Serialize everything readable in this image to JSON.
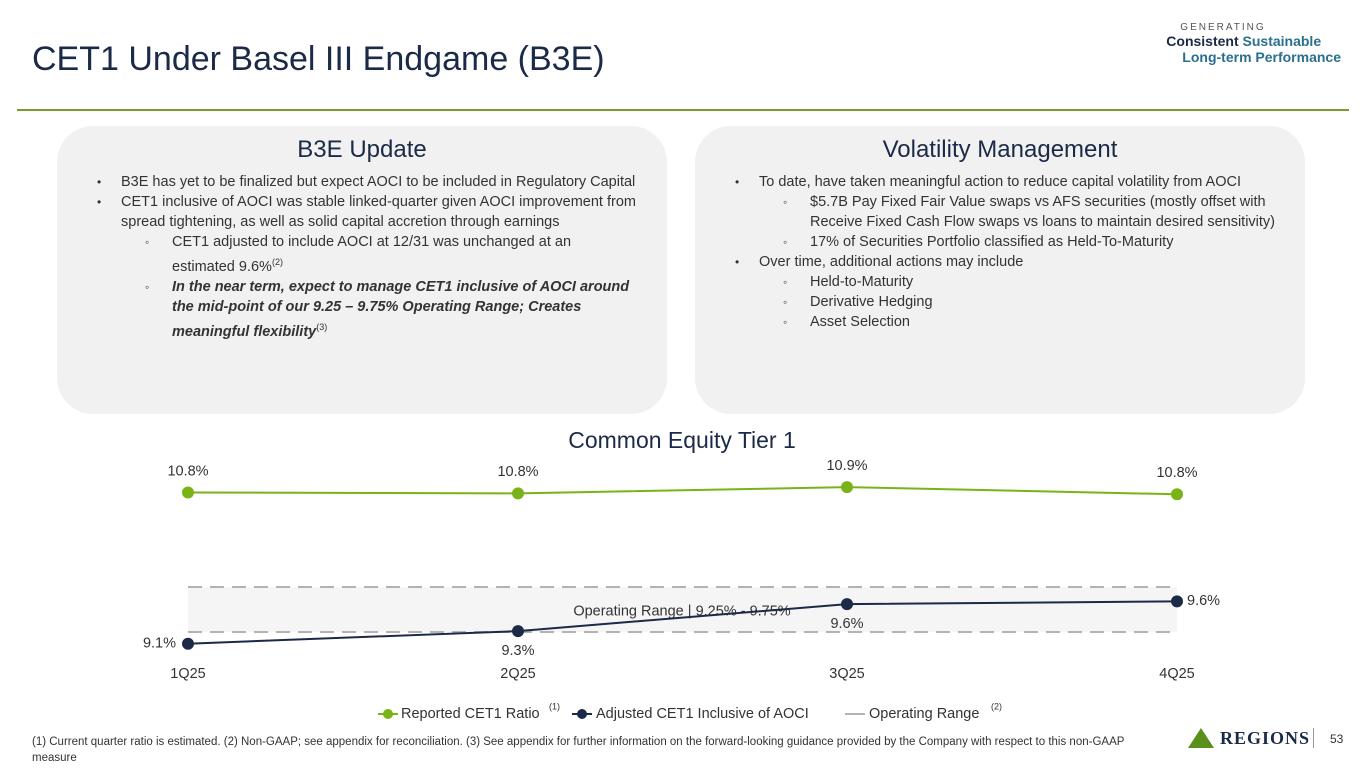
{
  "header": {
    "title": "CET1 Under Basel III Endgame (B3E)",
    "logo": {
      "line1": "GENERATING",
      "line2a": "Consistent",
      "line2b": "Sustainable",
      "line3": "Long-term Performance"
    }
  },
  "panels": [
    {
      "title": "B3E Update",
      "items": [
        {
          "text": "B3E has yet to be finalized but expect AOCI to be included in Regulatory Capital"
        },
        {
          "text": "CET1 inclusive of AOCI was stable linked-quarter given AOCI improvement from spread tightening, as well as solid capital accretion through earnings"
        },
        {
          "text": "CET1 adjusted to include AOCI at 12/31 was unchanged at an estimated 9.6%",
          "sup": "(2)"
        },
        {
          "text": "In the near term, expect to manage CET1 inclusive of AOCI around the mid-point of our 9.25 – 9.75% Operating Range; Creates meaningful flexibility",
          "sup": "(3)"
        }
      ]
    },
    {
      "title": "Volatility Management",
      "items": [
        {
          "text": "To date, have taken meaningful action to reduce capital volatility from AOCI"
        },
        {
          "text": "$5.7B Pay Fixed Fair Value swaps vs AFS securities (mostly offset with Receive Fixed Cash Flow swaps vs loans to maintain desired sensitivity)"
        },
        {
          "text": "17% of Securities Portfolio classified as Held-To-Maturity"
        },
        {
          "text": "Over time, additional actions may include"
        },
        {
          "text": "Held-to-Maturity"
        },
        {
          "text": "Derivative Hedging"
        },
        {
          "text": "Asset Selection"
        }
      ]
    }
  ],
  "chart_data": {
    "type": "line",
    "title": "Common Equity Tier 1",
    "categories": [
      "1Q25",
      "2Q25",
      "3Q25",
      "4Q25"
    ],
    "series": [
      {
        "name": "Reported CET1 Ratio",
        "note": "(1)",
        "color": "#7ab317",
        "values": [
          10.8,
          10.79,
          10.86,
          10.78
        ],
        "value_labels": [
          "10.8%",
          "10.8%",
          "10.9%",
          "10.8%"
        ]
      },
      {
        "name": "Adjusted CET1 Inclusive of AOCI",
        "color": "#1b2a47",
        "values": [
          9.12,
          9.26,
          9.56,
          9.59
        ],
        "value_labels": [
          "9.1%",
          "9.3%",
          "9.6%",
          "9.6%"
        ]
      }
    ],
    "operating_range": {
      "name": "Operating Range",
      "note": "(2)",
      "label": "Operating Range | 9.25% - 9.75%",
      "low": 9.25,
      "high": 9.75,
      "color": "#b3b3b3"
    },
    "ylim": [
      8.9,
      11.0
    ]
  },
  "footer": {
    "footnote": "(1) Current quarter ratio is estimated. (2) Non-GAAP; see appendix for reconciliation.  (3) See appendix for further information on the forward-looking guidance provided by the Company with respect to this non-GAAP measure",
    "brand": "REGIONS",
    "page": "53"
  }
}
